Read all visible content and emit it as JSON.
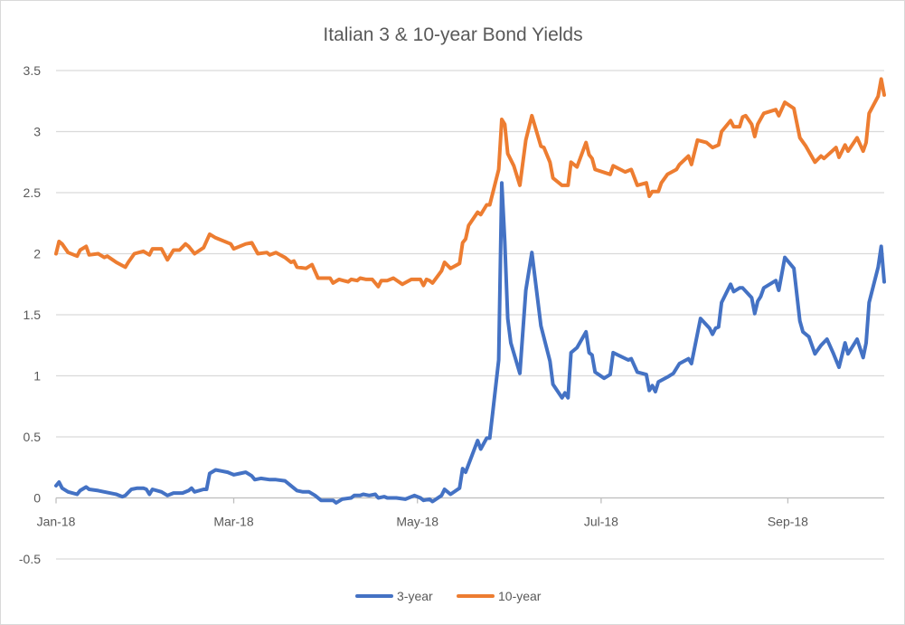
{
  "chart_data": {
    "type": "line",
    "title": "Italian 3 & 10-year Bond Yields",
    "xlabel": "",
    "ylabel": "",
    "x_units": "days since 2018-01-01",
    "xlim": [
      0,
      275
    ],
    "ylim": [
      -0.5,
      3.5
    ],
    "grid": true,
    "legend_position": "bottom",
    "y_ticks": [
      {
        "value": 3.5,
        "label": "3.5"
      },
      {
        "value": 3,
        "label": "3"
      },
      {
        "value": 2.5,
        "label": "2.5"
      },
      {
        "value": 2,
        "label": "2"
      },
      {
        "value": 1.5,
        "label": "1.5"
      },
      {
        "value": 1,
        "label": "1"
      },
      {
        "value": 0.5,
        "label": "0.5"
      },
      {
        "value": 0,
        "label": "0"
      },
      {
        "value": -0.5,
        "label": "-0.5"
      }
    ],
    "x_ticks": [
      {
        "value": 0,
        "label": "Jan-18"
      },
      {
        "value": 59,
        "label": "Mar-18"
      },
      {
        "value": 120,
        "label": "May-18"
      },
      {
        "value": 181,
        "label": "Jul-18"
      },
      {
        "value": 243,
        "label": "Sep-18"
      }
    ],
    "series": [
      {
        "name": "3-year",
        "color": "#4472c4",
        "points": [
          [
            0,
            0.1
          ],
          [
            1,
            0.13
          ],
          [
            2,
            0.08
          ],
          [
            4,
            0.05
          ],
          [
            7,
            0.03
          ],
          [
            8,
            0.06
          ],
          [
            10,
            0.09
          ],
          [
            11,
            0.07
          ],
          [
            14,
            0.06
          ],
          [
            16,
            0.05
          ],
          [
            20,
            0.03
          ],
          [
            22,
            0.01
          ],
          [
            23,
            0.02
          ],
          [
            25,
            0.07
          ],
          [
            27,
            0.08
          ],
          [
            29,
            0.08
          ],
          [
            30,
            0.07
          ],
          [
            31,
            0.03
          ],
          [
            32,
            0.07
          ],
          [
            35,
            0.05
          ],
          [
            37,
            0.02
          ],
          [
            39,
            0.04
          ],
          [
            42,
            0.04
          ],
          [
            44,
            0.06
          ],
          [
            45,
            0.08
          ],
          [
            46,
            0.05
          ],
          [
            49,
            0.07
          ],
          [
            50,
            0.07
          ],
          [
            51,
            0.2
          ],
          [
            53,
            0.23
          ],
          [
            55,
            0.22
          ],
          [
            57,
            0.21
          ],
          [
            59,
            0.19
          ],
          [
            61,
            0.2
          ],
          [
            63,
            0.21
          ],
          [
            65,
            0.18
          ],
          [
            66,
            0.15
          ],
          [
            68,
            0.16
          ],
          [
            71,
            0.15
          ],
          [
            73,
            0.15
          ],
          [
            76,
            0.14
          ],
          [
            77,
            0.12
          ],
          [
            79,
            0.08
          ],
          [
            80,
            0.06
          ],
          [
            82,
            0.05
          ],
          [
            84,
            0.05
          ],
          [
            86,
            0.02
          ],
          [
            88,
            -0.02
          ],
          [
            92,
            -0.02
          ],
          [
            93,
            -0.04
          ],
          [
            95,
            -0.01
          ],
          [
            98,
            0.0
          ],
          [
            99,
            0.02
          ],
          [
            101,
            0.02
          ],
          [
            102,
            0.03
          ],
          [
            104,
            0.02
          ],
          [
            106,
            0.03
          ],
          [
            107,
            0.0
          ],
          [
            109,
            0.01
          ],
          [
            110,
            0.0
          ],
          [
            113,
            0.0
          ],
          [
            116,
            -0.01
          ],
          [
            119,
            0.02
          ],
          [
            121,
            0.0
          ],
          [
            122,
            -0.02
          ],
          [
            124,
            -0.01
          ],
          [
            125,
            -0.03
          ],
          [
            128,
            0.02
          ],
          [
            129,
            0.07
          ],
          [
            131,
            0.03
          ],
          [
            134,
            0.08
          ],
          [
            135,
            0.24
          ],
          [
            136,
            0.21
          ],
          [
            140,
            0.47
          ],
          [
            141,
            0.4
          ],
          [
            143,
            0.49
          ],
          [
            144,
            0.49
          ],
          [
            145,
            0.7
          ],
          [
            147,
            1.13
          ],
          [
            148,
            2.58
          ],
          [
            149,
            2.1
          ],
          [
            150,
            1.47
          ],
          [
            151,
            1.27
          ],
          [
            154,
            1.02
          ],
          [
            156,
            1.7
          ],
          [
            158,
            2.01
          ],
          [
            161,
            1.41
          ],
          [
            164,
            1.12
          ],
          [
            165,
            0.93
          ],
          [
            168,
            0.82
          ],
          [
            169,
            0.86
          ],
          [
            170,
            0.82
          ],
          [
            171,
            1.19
          ],
          [
            173,
            1.23
          ],
          [
            176,
            1.36
          ],
          [
            177,
            1.19
          ],
          [
            178,
            1.17
          ],
          [
            179,
            1.03
          ],
          [
            182,
            0.98
          ],
          [
            184,
            1.01
          ],
          [
            185,
            1.19
          ],
          [
            190,
            1.13
          ],
          [
            191,
            1.14
          ],
          [
            193,
            1.03
          ],
          [
            196,
            1.01
          ],
          [
            197,
            0.88
          ],
          [
            198,
            0.92
          ],
          [
            199,
            0.87
          ],
          [
            200,
            0.95
          ],
          [
            203,
            0.99
          ],
          [
            205,
            1.02
          ],
          [
            207,
            1.1
          ],
          [
            210,
            1.14
          ],
          [
            211,
            1.1
          ],
          [
            214,
            1.47
          ],
          [
            217,
            1.39
          ],
          [
            218,
            1.34
          ],
          [
            219,
            1.39
          ],
          [
            220,
            1.4
          ],
          [
            221,
            1.6
          ],
          [
            224,
            1.75
          ],
          [
            225,
            1.69
          ],
          [
            227,
            1.72
          ],
          [
            228,
            1.72
          ],
          [
            231,
            1.64
          ],
          [
            232,
            1.51
          ],
          [
            233,
            1.61
          ],
          [
            234,
            1.65
          ],
          [
            235,
            1.72
          ],
          [
            239,
            1.78
          ],
          [
            240,
            1.7
          ],
          [
            242,
            1.97
          ],
          [
            245,
            1.88
          ],
          [
            247,
            1.45
          ],
          [
            248,
            1.36
          ],
          [
            250,
            1.32
          ],
          [
            252,
            1.18
          ],
          [
            254,
            1.25
          ],
          [
            256,
            1.3
          ],
          [
            258,
            1.19
          ],
          [
            259,
            1.13
          ],
          [
            260,
            1.07
          ],
          [
            262,
            1.27
          ],
          [
            263,
            1.18
          ],
          [
            266,
            1.3
          ],
          [
            268,
            1.15
          ],
          [
            269,
            1.27
          ],
          [
            270,
            1.6
          ],
          [
            273,
            1.89
          ],
          [
            274,
            2.06
          ],
          [
            275,
            1.77
          ]
        ]
      },
      {
        "name": "10-year",
        "color": "#ed7d31",
        "points": [
          [
            0,
            2.0
          ],
          [
            1,
            2.1
          ],
          [
            2,
            2.08
          ],
          [
            4,
            2.01
          ],
          [
            7,
            1.98
          ],
          [
            8,
            2.03
          ],
          [
            10,
            2.06
          ],
          [
            11,
            1.99
          ],
          [
            14,
            2.0
          ],
          [
            16,
            1.97
          ],
          [
            17,
            1.98
          ],
          [
            20,
            1.93
          ],
          [
            23,
            1.89
          ],
          [
            24,
            1.93
          ],
          [
            26,
            2.0
          ],
          [
            29,
            2.02
          ],
          [
            31,
            1.99
          ],
          [
            32,
            2.04
          ],
          [
            35,
            2.04
          ],
          [
            37,
            1.95
          ],
          [
            39,
            2.03
          ],
          [
            41,
            2.03
          ],
          [
            43,
            2.08
          ],
          [
            44,
            2.06
          ],
          [
            46,
            2.0
          ],
          [
            49,
            2.05
          ],
          [
            51,
            2.16
          ],
          [
            53,
            2.13
          ],
          [
            58,
            2.08
          ],
          [
            59,
            2.04
          ],
          [
            63,
            2.08
          ],
          [
            65,
            2.09
          ],
          [
            67,
            2.0
          ],
          [
            70,
            2.01
          ],
          [
            71,
            1.99
          ],
          [
            73,
            2.01
          ],
          [
            76,
            1.97
          ],
          [
            78,
            1.93
          ],
          [
            79,
            1.94
          ],
          [
            80,
            1.89
          ],
          [
            83,
            1.88
          ],
          [
            85,
            1.91
          ],
          [
            87,
            1.8
          ],
          [
            91,
            1.8
          ],
          [
            92,
            1.76
          ],
          [
            94,
            1.79
          ],
          [
            97,
            1.77
          ],
          [
            98,
            1.79
          ],
          [
            100,
            1.78
          ],
          [
            101,
            1.8
          ],
          [
            103,
            1.79
          ],
          [
            105,
            1.79
          ],
          [
            107,
            1.73
          ],
          [
            108,
            1.78
          ],
          [
            110,
            1.78
          ],
          [
            112,
            1.8
          ],
          [
            115,
            1.75
          ],
          [
            118,
            1.79
          ],
          [
            121,
            1.79
          ],
          [
            122,
            1.74
          ],
          [
            123,
            1.79
          ],
          [
            124,
            1.78
          ],
          [
            125,
            1.76
          ],
          [
            128,
            1.86
          ],
          [
            129,
            1.93
          ],
          [
            131,
            1.88
          ],
          [
            134,
            1.92
          ],
          [
            135,
            2.09
          ],
          [
            136,
            2.12
          ],
          [
            137,
            2.23
          ],
          [
            140,
            2.34
          ],
          [
            141,
            2.32
          ],
          [
            143,
            2.4
          ],
          [
            144,
            2.4
          ],
          [
            147,
            2.69
          ],
          [
            148,
            3.1
          ],
          [
            149,
            3.06
          ],
          [
            150,
            2.82
          ],
          [
            152,
            2.72
          ],
          [
            154,
            2.56
          ],
          [
            156,
            2.93
          ],
          [
            158,
            3.13
          ],
          [
            161,
            2.88
          ],
          [
            162,
            2.87
          ],
          [
            164,
            2.75
          ],
          [
            165,
            2.62
          ],
          [
            168,
            2.56
          ],
          [
            170,
            2.56
          ],
          [
            171,
            2.75
          ],
          [
            173,
            2.71
          ],
          [
            176,
            2.91
          ],
          [
            177,
            2.81
          ],
          [
            178,
            2.78
          ],
          [
            179,
            2.69
          ],
          [
            184,
            2.65
          ],
          [
            185,
            2.72
          ],
          [
            189,
            2.67
          ],
          [
            191,
            2.69
          ],
          [
            193,
            2.56
          ],
          [
            196,
            2.58
          ],
          [
            197,
            2.47
          ],
          [
            198,
            2.51
          ],
          [
            200,
            2.51
          ],
          [
            201,
            2.58
          ],
          [
            203,
            2.65
          ],
          [
            206,
            2.69
          ],
          [
            207,
            2.73
          ],
          [
            210,
            2.8
          ],
          [
            211,
            2.73
          ],
          [
            213,
            2.93
          ],
          [
            216,
            2.91
          ],
          [
            218,
            2.87
          ],
          [
            220,
            2.89
          ],
          [
            221,
            3.0
          ],
          [
            224,
            3.09
          ],
          [
            225,
            3.04
          ],
          [
            227,
            3.04
          ],
          [
            228,
            3.12
          ],
          [
            229,
            3.13
          ],
          [
            231,
            3.06
          ],
          [
            232,
            2.96
          ],
          [
            233,
            3.06
          ],
          [
            235,
            3.15
          ],
          [
            239,
            3.18
          ],
          [
            240,
            3.13
          ],
          [
            242,
            3.24
          ],
          [
            245,
            3.19
          ],
          [
            247,
            2.95
          ],
          [
            249,
            2.88
          ],
          [
            252,
            2.75
          ],
          [
            254,
            2.8
          ],
          [
            255,
            2.78
          ],
          [
            259,
            2.87
          ],
          [
            260,
            2.79
          ],
          [
            262,
            2.89
          ],
          [
            263,
            2.84
          ],
          [
            266,
            2.95
          ],
          [
            268,
            2.84
          ],
          [
            269,
            2.91
          ],
          [
            270,
            3.15
          ],
          [
            273,
            3.29
          ],
          [
            274,
            3.43
          ],
          [
            275,
            3.3
          ]
        ]
      }
    ]
  }
}
